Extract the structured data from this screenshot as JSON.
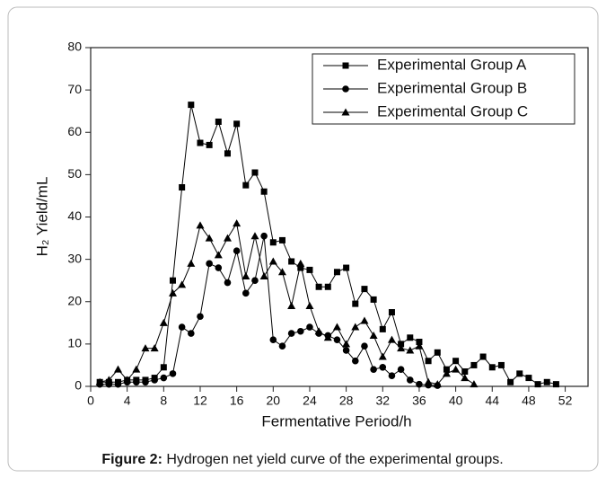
{
  "chart_data": {
    "type": "line",
    "x_label": "Fermentative Period/h",
    "y_label": "H₂ Yield/mL",
    "xlim": [
      0,
      54.5
    ],
    "xticks": [
      0,
      4,
      8,
      12,
      16,
      20,
      24,
      28,
      32,
      36,
      40,
      44,
      48,
      52
    ],
    "ylim": [
      0,
      80
    ],
    "yticks": [
      0,
      10,
      20,
      30,
      40,
      50,
      60,
      70,
      80
    ],
    "legend": "top-right",
    "series": [
      {
        "name": "Experimental Group A",
        "color": "#000000",
        "marker": "square",
        "x": [
          1,
          2,
          3,
          4,
          5,
          6,
          7,
          8,
          9,
          10,
          11,
          12,
          13,
          14,
          15,
          16,
          17,
          18,
          19,
          20,
          21,
          22,
          23,
          24,
          25,
          26,
          27,
          28,
          29,
          30,
          31,
          32,
          33,
          34,
          35,
          36,
          37,
          38,
          39,
          40,
          41,
          42,
          43,
          44,
          45,
          46,
          47,
          48,
          49,
          50,
          51
        ],
        "values": [
          1,
          1,
          1,
          1.5,
          1.5,
          1.5,
          2,
          4.5,
          25,
          47,
          66.5,
          57.5,
          57,
          62.5,
          55,
          62,
          47.5,
          50.5,
          46,
          34,
          34.5,
          29.5,
          28,
          27.5,
          23.5,
          23.5,
          27,
          28,
          19.5,
          23,
          20.5,
          13.5,
          17.5,
          10,
          11.5,
          10.5,
          6,
          8,
          4,
          6,
          3.5,
          5,
          7,
          4.5,
          5,
          1,
          3,
          2,
          0.5,
          1,
          0.5
        ]
      },
      {
        "name": "Experimental Group B",
        "color": "#000000",
        "marker": "circle",
        "x": [
          1,
          2,
          3,
          4,
          5,
          6,
          7,
          8,
          9,
          10,
          11,
          12,
          13,
          14,
          15,
          16,
          17,
          18,
          19,
          20,
          21,
          22,
          23,
          24,
          25,
          26,
          27,
          28,
          29,
          30,
          31,
          32,
          33,
          34,
          35,
          36,
          37,
          38
        ],
        "values": [
          0.5,
          0.5,
          0.5,
          1,
          1,
          1,
          1.5,
          2,
          3,
          14,
          12.5,
          16.5,
          29,
          28,
          24.5,
          32,
          22,
          25,
          35.5,
          11,
          9.5,
          12.5,
          13,
          14,
          12.5,
          12,
          11,
          8.5,
          6,
          9.5,
          4,
          4.5,
          2.5,
          4,
          1.5,
          0.5,
          0.3,
          0.2
        ]
      },
      {
        "name": "Experimental Group C",
        "color": "#000000",
        "marker": "triangle",
        "x": [
          1,
          2,
          3,
          4,
          5,
          6,
          7,
          8,
          9,
          10,
          11,
          12,
          13,
          14,
          15,
          16,
          17,
          18,
          19,
          20,
          21,
          22,
          23,
          24,
          25,
          26,
          27,
          28,
          29,
          30,
          31,
          32,
          33,
          34,
          35,
          36,
          37,
          38,
          39,
          40,
          41,
          42
        ],
        "values": [
          1,
          1.5,
          4,
          1.5,
          4,
          9,
          9,
          15,
          22,
          24,
          29,
          38,
          35,
          31,
          35,
          38.5,
          26,
          35.5,
          26,
          29.5,
          27,
          19,
          29,
          19,
          13,
          11.5,
          14,
          10,
          14,
          15.5,
          12,
          7,
          11,
          9,
          8.5,
          9.5,
          1,
          0.5,
          3,
          4,
          2,
          0.5
        ]
      }
    ]
  },
  "caption": {
    "label": "Figure 2:",
    "text": " Hydrogen net yield curve of the experimental groups."
  }
}
